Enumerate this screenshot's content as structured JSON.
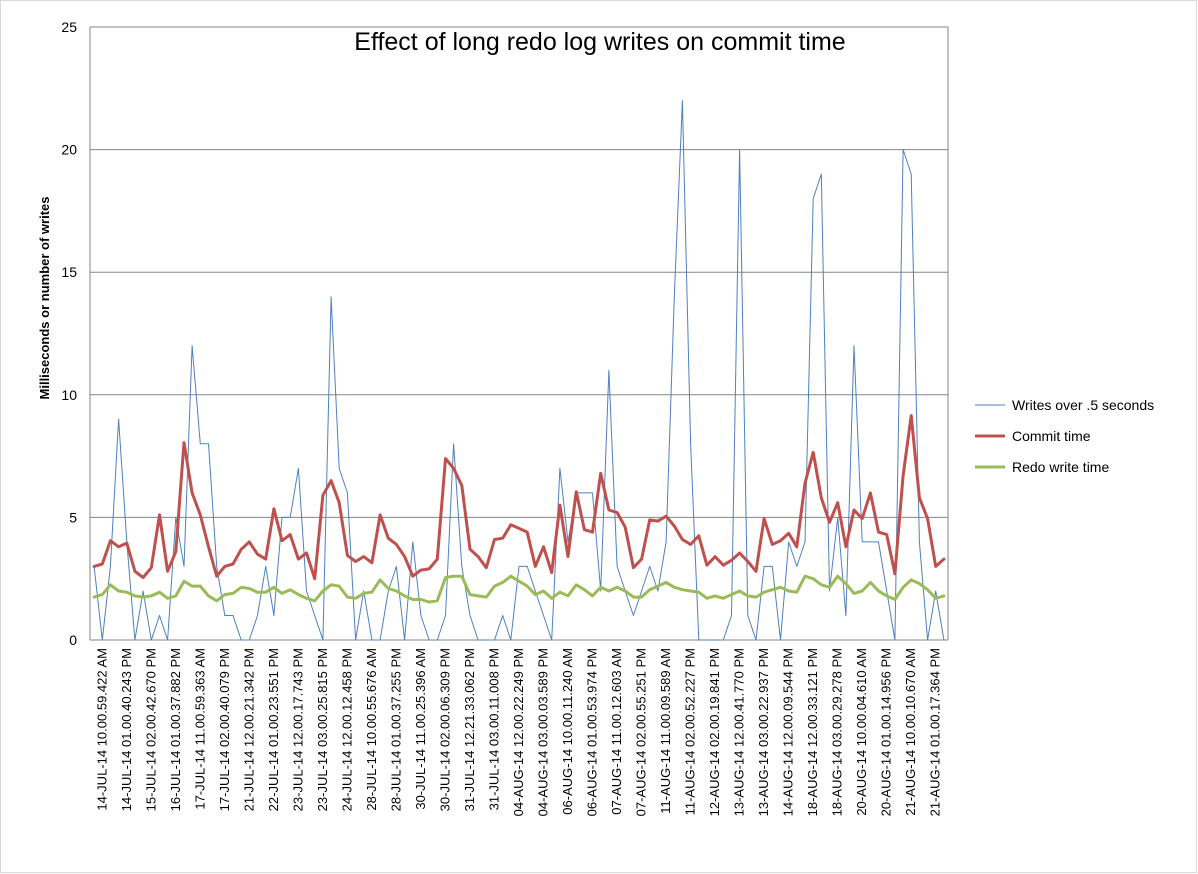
{
  "chart_data": {
    "type": "line",
    "title": "Effect of long redo log writes on commit time",
    "xlabel": "",
    "ylabel": "Milliseconds or number of writes",
    "ylim": [
      0,
      25
    ],
    "yticks": [
      0,
      5,
      10,
      15,
      20,
      25
    ],
    "grid": true,
    "legend_position": "right",
    "x_tick_labels": [
      "14-JUL-14 10.00.59.422 AM",
      "14-JUL-14 01.00.40.243 PM",
      "15-JUL-14 02.00.42.670 PM",
      "16-JUL-14 01.00.37.882 PM",
      "17-JUL-14 11.00.59.363 AM",
      "17-JUL-14 02.00.40.079 PM",
      "21-JUL-14 12.00.21.342 PM",
      "22-JUL-14 01.00.23.551 PM",
      "23-JUL-14 12.00.17.743 PM",
      "23-JUL-14 03.00.25.815 PM",
      "24-JUL-14 12.00.12.458 PM",
      "28-JUL-14 10.00.55.676 AM",
      "28-JUL-14 01.00.37.255 PM",
      "30-JUL-14 11.00.25.396 AM",
      "30-JUL-14 02.00.06.309 PM",
      "31-JUL-14 12.21.33.062 PM",
      "31-JUL-14 03.00.11.008 PM",
      "04-AUG-14 12.00.22.249 PM",
      "04-AUG-14 03.00.03.589 PM",
      "06-AUG-14 10.00.11.240 AM",
      "06-AUG-14 01.00.53.974 PM",
      "07-AUG-14 11.00.12.603 AM",
      "07-AUG-14 02.00.55.251 PM",
      "11-AUG-14 11.00.09.589 AM",
      "11-AUG-14 02.00.52.227 PM",
      "12-AUG-14 02.00.19.841 PM",
      "13-AUG-14 12.00.41.770 PM",
      "13-AUG-14 03.00.22.937 PM",
      "14-AUG-14 12.00.09.544 PM",
      "18-AUG-14 12.00.33.121 PM",
      "18-AUG-14 03.00.29.278 PM",
      "20-AUG-14 10.00.04.610 AM",
      "20-AUG-14 01.00.14.956 PM",
      "21-AUG-14 10.00.10.670 AM",
      "21-AUG-14 01.00.17.364 PM"
    ],
    "series": [
      {
        "name": "Writes over .5 seconds",
        "color": "#4f81bd",
        "values": [
          3,
          0,
          3,
          9,
          4,
          0,
          2,
          0,
          1,
          0,
          5,
          3,
          12,
          8,
          8,
          3,
          1,
          1,
          0,
          0,
          1,
          3,
          1,
          5,
          5,
          7,
          2,
          1,
          0,
          14,
          7,
          6,
          0,
          2,
          0,
          0,
          2,
          3,
          0,
          4,
          1,
          0,
          0,
          1,
          8,
          3,
          1,
          0,
          0,
          0,
          1,
          0,
          3,
          3,
          2,
          1,
          0,
          7,
          4,
          6,
          6,
          6,
          2,
          11,
          3,
          2,
          1,
          2,
          3,
          2,
          4,
          14,
          22,
          8,
          0,
          0,
          0,
          0,
          1,
          20,
          1,
          0,
          3,
          3,
          0,
          4,
          3,
          4,
          18,
          19,
          2,
          5,
          1,
          12,
          4,
          4,
          4,
          2,
          0,
          20,
          19,
          4,
          0,
          2,
          0
        ]
      },
      {
        "name": "Commit time",
        "color": "#c0504d",
        "values": [
          3.0,
          3.1,
          4.05,
          3.8,
          3.95,
          2.8,
          2.55,
          2.95,
          5.1,
          2.8,
          3.6,
          8.05,
          6.0,
          5.1,
          3.8,
          2.6,
          3.0,
          3.1,
          3.7,
          4.0,
          3.5,
          3.3,
          5.35,
          4.05,
          4.3,
          3.3,
          3.55,
          2.5,
          5.9,
          6.5,
          5.6,
          3.45,
          3.2,
          3.4,
          3.15,
          5.1,
          4.15,
          3.9,
          3.4,
          2.6,
          2.85,
          2.9,
          3.3,
          7.4,
          7.0,
          6.3,
          3.7,
          3.4,
          2.95,
          4.1,
          4.15,
          4.7,
          4.55,
          4.4,
          3.0,
          3.8,
          2.75,
          5.5,
          3.4,
          6.05,
          4.5,
          4.4,
          6.8,
          5.3,
          5.2,
          4.6,
          2.95,
          3.3,
          4.9,
          4.85,
          5.05,
          4.65,
          4.1,
          3.9,
          4.25,
          3.05,
          3.4,
          3.05,
          3.25,
          3.55,
          3.2,
          2.8,
          4.95,
          3.9,
          4.05,
          4.35,
          3.8,
          6.4,
          7.65,
          5.8,
          4.8,
          5.6,
          3.8,
          5.3,
          4.95,
          6.0,
          4.4,
          4.3,
          2.7,
          6.7,
          9.15,
          5.8,
          4.95,
          3.0,
          3.3
        ]
      },
      {
        "name": "Redo write time",
        "color": "#9bbb59",
        "values": [
          1.75,
          1.85,
          2.25,
          2.0,
          1.95,
          1.8,
          1.75,
          1.8,
          1.95,
          1.7,
          1.8,
          2.4,
          2.2,
          2.2,
          1.8,
          1.6,
          1.85,
          1.9,
          2.15,
          2.1,
          1.95,
          1.95,
          2.15,
          1.9,
          2.05,
          1.85,
          1.7,
          1.6,
          2.0,
          2.25,
          2.2,
          1.75,
          1.7,
          1.9,
          1.95,
          2.45,
          2.1,
          2.0,
          1.8,
          1.65,
          1.65,
          1.55,
          1.6,
          2.55,
          2.6,
          2.6,
          1.85,
          1.8,
          1.75,
          2.2,
          2.35,
          2.6,
          2.4,
          2.2,
          1.85,
          2.0,
          1.7,
          1.95,
          1.8,
          2.25,
          2.05,
          1.8,
          2.15,
          2.0,
          2.15,
          2.0,
          1.75,
          1.75,
          2.05,
          2.2,
          2.35,
          2.15,
          2.05,
          2.0,
          1.95,
          1.7,
          1.8,
          1.7,
          1.85,
          2.0,
          1.8,
          1.75,
          1.95,
          2.05,
          2.15,
          2.0,
          1.95,
          2.6,
          2.5,
          2.25,
          2.15,
          2.6,
          2.3,
          1.9,
          2.0,
          2.35,
          2.0,
          1.8,
          1.65,
          2.15,
          2.45,
          2.3,
          2.05,
          1.7,
          1.8
        ]
      }
    ]
  }
}
